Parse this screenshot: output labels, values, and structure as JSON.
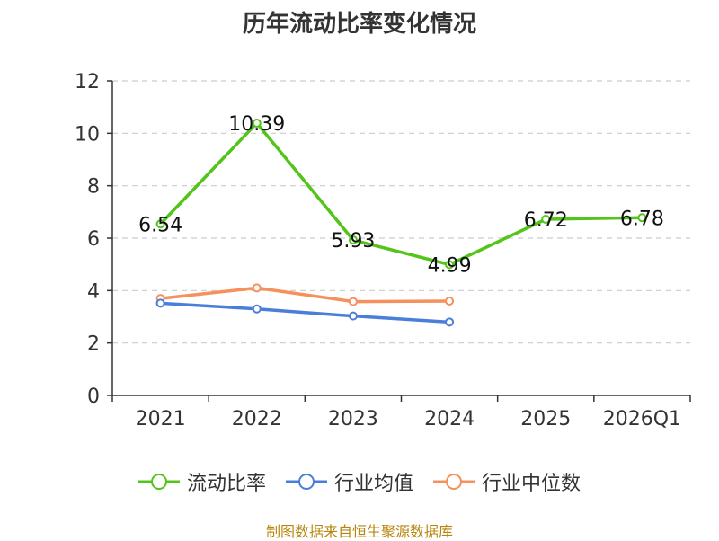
{
  "chart_data": {
    "type": "line",
    "title": "历年流动比率变化情况",
    "categories": [
      "2021",
      "2022",
      "2023",
      "2024",
      "2025",
      "2026Q1"
    ],
    "ylim": [
      0,
      12
    ],
    "yticks": [
      0,
      2,
      4,
      6,
      8,
      10,
      12
    ],
    "grid": true,
    "legend_position": "bottom",
    "series": [
      {
        "name": "流动比率",
        "color": "#52c41a",
        "values": [
          6.54,
          10.39,
          5.93,
          4.99,
          6.72,
          6.78
        ],
        "labels": [
          "6.54",
          "10.39",
          "5.93",
          "4.99",
          "6.72",
          "6.78"
        ]
      },
      {
        "name": "行业均值",
        "color": "#4a7fd9",
        "values": [
          3.52,
          3.3,
          3.03,
          2.8,
          null,
          null
        ]
      },
      {
        "name": "行业中位数",
        "color": "#f4915c",
        "values": [
          3.7,
          4.1,
          3.58,
          3.6,
          null,
          null
        ]
      }
    ]
  },
  "footer": {
    "source": "制图数据来自恒生聚源数据库"
  }
}
